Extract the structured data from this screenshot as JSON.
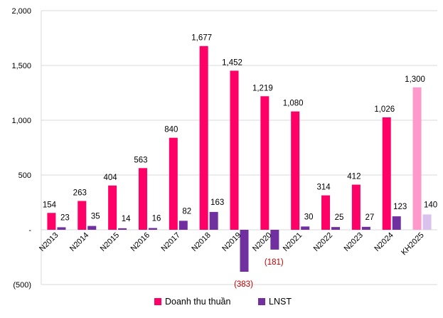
{
  "chart_data": {
    "type": "bar",
    "categories": [
      "N2013",
      "N2014",
      "N2015",
      "N2016",
      "N2017",
      "N2018",
      "N2019",
      "N2020",
      "N2021",
      "N2022",
      "N2023",
      "N2024",
      "KH2025"
    ],
    "series": [
      {
        "name": "Doanh thu thuần",
        "color": "#ff0066",
        "plan_color": "#ff99cc",
        "values": [
          154,
          263,
          404,
          563,
          840,
          1677,
          1452,
          1219,
          1080,
          314,
          412,
          1026,
          1300
        ],
        "labels": [
          "154",
          "263",
          "404",
          "563",
          "840",
          "1,677",
          "1,452",
          "1,219",
          "1,080",
          "314",
          "412",
          "1,026",
          "1,300"
        ]
      },
      {
        "name": "LNST",
        "color": "#7030a0",
        "plan_color": "#d9c3ee",
        "values": [
          23,
          35,
          14,
          16,
          82,
          163,
          -383,
          -181,
          30,
          25,
          27,
          123,
          140
        ],
        "labels": [
          "23",
          "35",
          "14",
          "16",
          "82",
          "163",
          "(383)",
          "(181)",
          "30",
          "25",
          "27",
          "123",
          "140"
        ]
      }
    ],
    "y_ticks": [
      {
        "value": 2000,
        "label": "2,000"
      },
      {
        "value": 1500,
        "label": "1,500"
      },
      {
        "value": 1000,
        "label": "1,000"
      },
      {
        "value": 500,
        "label": "500"
      },
      {
        "value": 0,
        "label": "-"
      },
      {
        "value": -500,
        "label": "(500)"
      }
    ],
    "ylim": [
      -500,
      2000
    ],
    "grid": true,
    "legend_position": "bottom",
    "negative_label_color": "#c00000",
    "title": "",
    "xlabel": "",
    "ylabel": ""
  }
}
